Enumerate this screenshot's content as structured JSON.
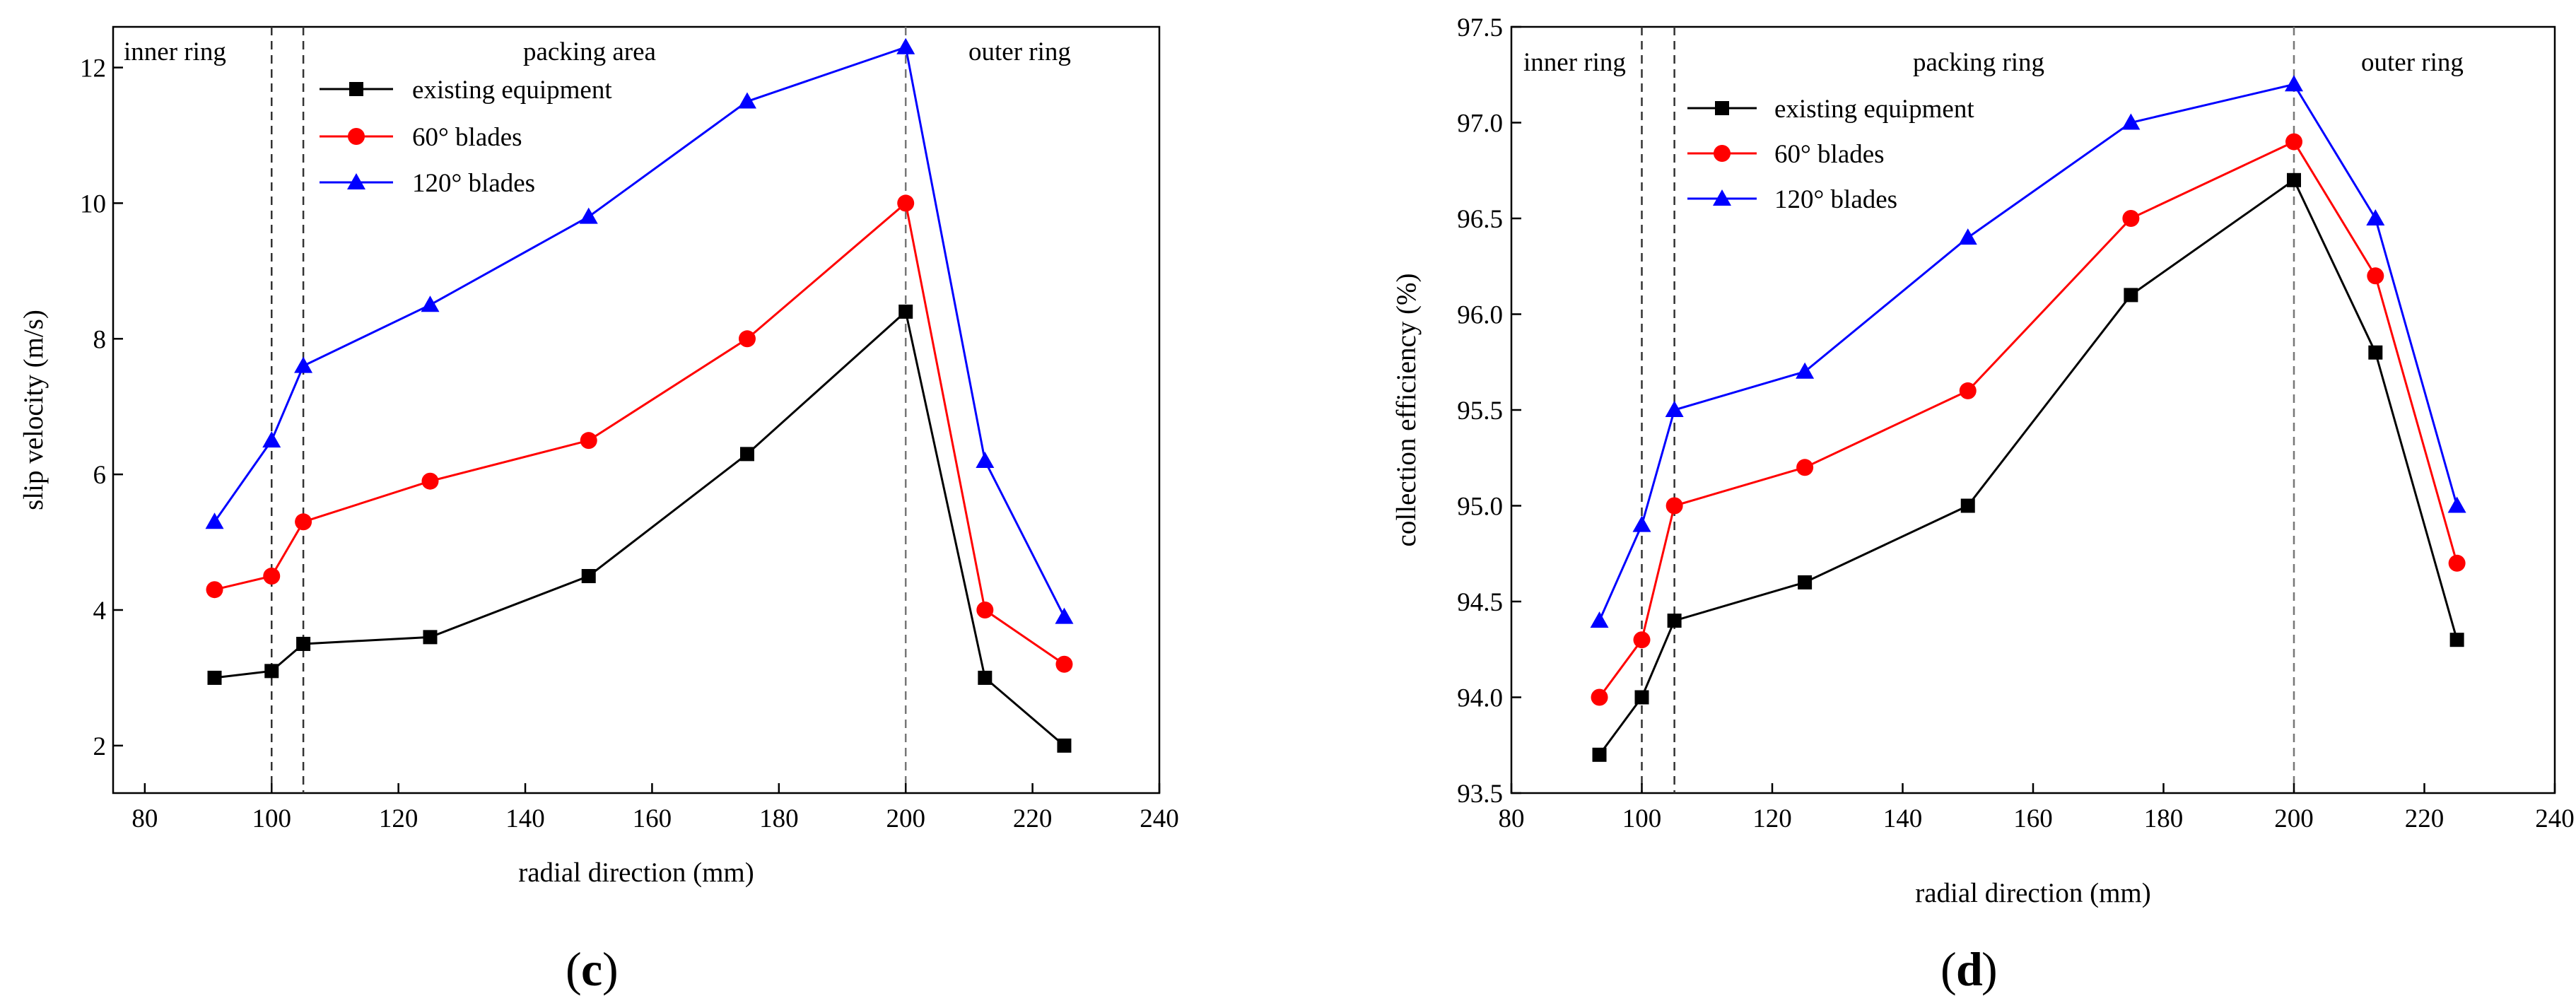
{
  "chart_data": [
    {
      "type": "line",
      "panel_label": "c",
      "xlabel": "radial direction (mm)",
      "ylabel": "slip velocity (m/s)",
      "xlim": [
        75,
        240
      ],
      "ylim": [
        1.3,
        12.6
      ],
      "xticks": [
        80,
        100,
        120,
        140,
        160,
        180,
        200,
        220,
        240
      ],
      "yticks": [
        2,
        4,
        6,
        8,
        10,
        12
      ],
      "tick_labels_x": [
        "80",
        "100",
        "120",
        "140",
        "160",
        "180",
        "200",
        "220",
        "240"
      ],
      "tick_labels_y": [
        "2",
        "4",
        "6",
        "8",
        "10",
        "12"
      ],
      "x": [
        91,
        100,
        105,
        125,
        150,
        175,
        200,
        212.5,
        225
      ],
      "series": [
        {
          "name": "existing equipment",
          "color": "#000000",
          "marker": "square",
          "values": [
            3.0,
            3.1,
            3.5,
            3.6,
            4.5,
            6.3,
            8.4,
            3.0,
            2.0
          ]
        },
        {
          "name": "60° blades",
          "color": "#ff0000",
          "marker": "circle",
          "values": [
            4.3,
            4.5,
            5.3,
            5.9,
            6.5,
            8.0,
            10.0,
            4.0,
            3.2
          ]
        },
        {
          "name": "120° blades",
          "color": "#0000ff",
          "marker": "triangle",
          "values": [
            5.3,
            6.5,
            7.6,
            8.5,
            9.8,
            11.5,
            12.3,
            6.2,
            3.9
          ]
        }
      ],
      "vlines": [
        100,
        105,
        200
      ],
      "regions": [
        "inner ring",
        "packing area",
        "outer ring"
      ],
      "legend": "top-left"
    },
    {
      "type": "line",
      "panel_label": "d",
      "xlabel": "radial direction (mm)",
      "ylabel": "collection efficiency (%)",
      "xlim": [
        80,
        240
      ],
      "ylim": [
        93.5,
        97.5
      ],
      "xticks": [
        80,
        100,
        120,
        140,
        160,
        180,
        200,
        220,
        240
      ],
      "yticks": [
        93.5,
        94.0,
        94.5,
        95.0,
        95.5,
        96.0,
        96.5,
        97.0,
        97.5
      ],
      "tick_labels_x": [
        "80",
        "100",
        "120",
        "140",
        "160",
        "180",
        "200",
        "220",
        "240"
      ],
      "tick_labels_y": [
        "93.5",
        "94.0",
        "94.5",
        "95.0",
        "95.5",
        "96.0",
        "96.5",
        "97.0",
        "97.5"
      ],
      "x": [
        93.5,
        100,
        105,
        125,
        150,
        175,
        200,
        212.5,
        225
      ],
      "series": [
        {
          "name": "existing equipment",
          "color": "#000000",
          "marker": "square",
          "values": [
            93.7,
            94.0,
            94.4,
            94.6,
            95.0,
            96.1,
            96.7,
            95.8,
            94.3
          ]
        },
        {
          "name": "60° blades",
          "color": "#ff0000",
          "marker": "circle",
          "values": [
            94.0,
            94.3,
            95.0,
            95.2,
            95.6,
            96.5,
            96.9,
            96.2,
            94.7
          ]
        },
        {
          "name": "120° blades",
          "color": "#0000ff",
          "marker": "triangle",
          "values": [
            94.4,
            94.9,
            95.5,
            95.7,
            96.4,
            97.0,
            97.2,
            96.5,
            95.0
          ]
        }
      ],
      "vlines": [
        100,
        105,
        200
      ],
      "regions": [
        "inner ring",
        "packing ring",
        "outer ring"
      ],
      "legend": "top-left"
    }
  ]
}
